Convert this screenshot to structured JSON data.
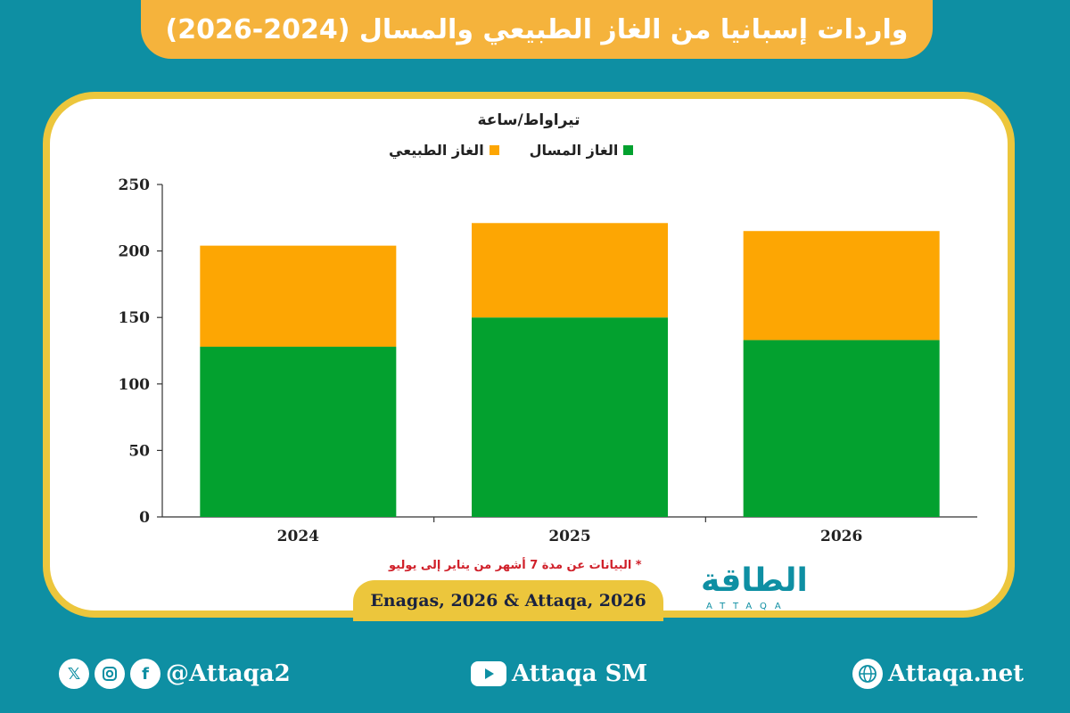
{
  "title": "واردات إسبانيا من الغاز الطبيعي والمسال (2024-2026)",
  "note": "* البيانات عن مدة 7 أشهر من يناير إلى يوليو",
  "source": "Enagas, 2026 & Attaqa, 2026",
  "logo": {
    "text": "الطاقة",
    "sub": "ATTAQA"
  },
  "footer": {
    "social_handle": "@Attaqa2",
    "youtube": "Attaqa SM",
    "website": "Attaqa.net",
    "icons": [
      "x-icon",
      "instagram-icon",
      "facebook-icon",
      "youtube-icon",
      "globe-icon"
    ]
  },
  "colors": {
    "lng": "#03a12f",
    "natural_gas": "#fda603",
    "banner": "#f5b33c",
    "frame": "#ecc63c",
    "background": "#0e8fa3"
  },
  "chart_data": {
    "type": "bar",
    "stacked": true,
    "ylabel": "تيراواط/ساعة",
    "categories": [
      "2024",
      "2025",
      "2026"
    ],
    "series": [
      {
        "name": "الغاز المسال",
        "color": "#03a12f",
        "values": [
          128,
          150,
          133
        ]
      },
      {
        "name": "الغاز الطبيعي",
        "color": "#fda603",
        "values": [
          76,
          71,
          82
        ]
      }
    ],
    "ylim": [
      0,
      250
    ],
    "yticks": [
      0,
      50,
      100,
      150,
      200,
      250
    ],
    "grid": false,
    "legend_position": "top"
  }
}
